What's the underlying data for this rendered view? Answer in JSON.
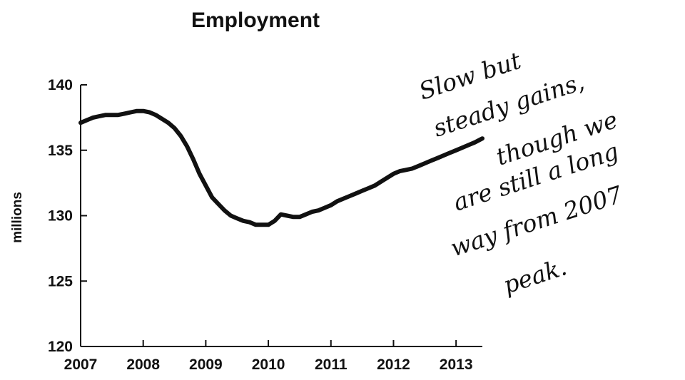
{
  "chart_data": {
    "type": "line",
    "title": "Employment",
    "ylabel": "millions",
    "xlabel": "",
    "xlim": [
      2007,
      2013.42
    ],
    "ylim": [
      120,
      140
    ],
    "x_ticks": [
      2007,
      2008,
      2009,
      2010,
      2011,
      2012,
      2013
    ],
    "y_ticks": [
      120,
      125,
      130,
      135,
      140
    ],
    "grid": false,
    "series": [
      {
        "x": [
          2007.0,
          2007.1,
          2007.2,
          2007.3,
          2007.4,
          2007.5,
          2007.6,
          2007.7,
          2007.8,
          2007.9,
          2008.0,
          2008.1,
          2008.2,
          2008.3,
          2008.4,
          2008.5,
          2008.6,
          2008.7,
          2008.8,
          2008.9,
          2009.0,
          2009.1,
          2009.2,
          2009.3,
          2009.4,
          2009.5,
          2009.6,
          2009.7,
          2009.8,
          2009.9,
          2010.0,
          2010.1,
          2010.2,
          2010.3,
          2010.4,
          2010.5,
          2010.6,
          2010.7,
          2010.8,
          2010.9,
          2011.0,
          2011.1,
          2011.2,
          2011.3,
          2011.4,
          2011.5,
          2011.6,
          2011.7,
          2011.8,
          2011.9,
          2012.0,
          2012.1,
          2012.2,
          2012.3,
          2012.4,
          2012.5,
          2012.6,
          2012.7,
          2012.8,
          2012.9,
          2013.0,
          2013.1,
          2013.2,
          2013.3,
          2013.42
        ],
        "values": [
          137.1,
          137.3,
          137.5,
          137.6,
          137.7,
          137.7,
          137.7,
          137.8,
          137.9,
          138.0,
          138.0,
          137.9,
          137.7,
          137.4,
          137.1,
          136.7,
          136.1,
          135.3,
          134.3,
          133.2,
          132.3,
          131.4,
          130.9,
          130.4,
          130.0,
          129.8,
          129.6,
          129.5,
          129.3,
          129.3,
          129.3,
          129.6,
          130.1,
          130.0,
          129.9,
          129.9,
          130.1,
          130.3,
          130.4,
          130.6,
          130.8,
          131.1,
          131.3,
          131.5,
          131.7,
          131.9,
          132.1,
          132.3,
          132.6,
          132.9,
          133.2,
          133.4,
          133.5,
          133.6,
          133.8,
          134.0,
          134.2,
          134.4,
          134.6,
          134.8,
          135.0,
          135.2,
          135.4,
          135.6,
          135.9
        ]
      }
    ],
    "annotation": {
      "lines": [
        "Slow but",
        "steady gains,",
        "though we",
        "are still a long",
        "way from 2007",
        "peak."
      ]
    }
  }
}
